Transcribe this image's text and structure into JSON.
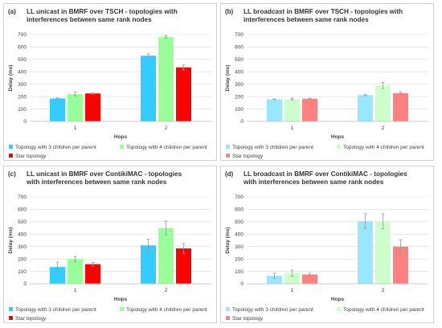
{
  "chart_data": [
    {
      "id": "a",
      "type": "bar",
      "letter": "(a)",
      "title_lines": [
        "LL unicast in BMRF over TSCH - topologies with",
        "interferences between same rank nodes"
      ],
      "xlabel": "Hops",
      "ylabel": "Delay (ms)",
      "ylim": [
        0,
        700
      ],
      "yticks": [
        0,
        100,
        200,
        300,
        400,
        500,
        600,
        700
      ],
      "categories": [
        "1",
        "2"
      ],
      "grid": true,
      "legend_position": "bottom",
      "series": [
        {
          "name": "Topology with 3 children per parent",
          "color": "#33ccff",
          "values": [
            185,
            530
          ],
          "errors": [
            5,
            15
          ]
        },
        {
          "name": "Topology with 4 children per parent",
          "color": "#99ff99",
          "values": [
            220,
            680
          ],
          "errors": [
            15,
            10
          ]
        },
        {
          "name": "Star topology",
          "color": "#ff0000",
          "values": [
            225,
            435
          ],
          "errors": [
            5,
            20
          ]
        }
      ]
    },
    {
      "id": "b",
      "type": "bar",
      "letter": "(b)",
      "title_lines": [
        "LL broadcast in BMRF over TSCH - topologies with",
        "interferences between same rank nodes"
      ],
      "xlabel": "Hops",
      "ylabel": "Delay (ms)",
      "ylim": [
        0,
        700
      ],
      "yticks": [
        0,
        100,
        200,
        300,
        400,
        500,
        600,
        700
      ],
      "categories": [
        "1",
        "2"
      ],
      "grid": true,
      "legend_position": "bottom",
      "series": [
        {
          "name": "Topology with 3 children per parent",
          "color": "#99e6ff",
          "values": [
            178,
            212
          ],
          "errors": [
            4,
            5
          ]
        },
        {
          "name": "Topology with 4 children per parent",
          "color": "#ccffcc",
          "values": [
            180,
            290
          ],
          "errors": [
            8,
            25
          ]
        },
        {
          "name": "Star topology",
          "color": "#ff8080",
          "values": [
            183,
            228
          ],
          "errors": [
            4,
            8
          ]
        }
      ]
    },
    {
      "id": "c",
      "type": "bar",
      "letter": "(c)",
      "title_lines": [
        "LL unicast in BMRF over ContikiMAC - topologies",
        "with interferences between same rank nodes"
      ],
      "xlabel": "Hops",
      "ylabel": "Delay (ms)",
      "ylim": [
        0,
        700
      ],
      "yticks": [
        0,
        100,
        200,
        300,
        400,
        500,
        600,
        700
      ],
      "categories": [
        "1",
        "2"
      ],
      "grid": true,
      "legend_position": "bottom",
      "series": [
        {
          "name": "Topology with 3 children per parent",
          "color": "#33ccff",
          "values": [
            135,
            310
          ],
          "errors": [
            40,
            50
          ]
        },
        {
          "name": "Topology with 4 children per parent",
          "color": "#99ff99",
          "values": [
            200,
            450
          ],
          "errors": [
            20,
            55
          ]
        },
        {
          "name": "Star topology",
          "color": "#ff0000",
          "values": [
            158,
            285
          ],
          "errors": [
            15,
            40
          ]
        }
      ]
    },
    {
      "id": "d",
      "type": "bar",
      "letter": "(d)",
      "title_lines": [
        "LL broadcast in BMRF over ContikiMAC - topologies",
        "with interferences between same rank nodes"
      ],
      "xlabel": "Hops",
      "ylabel": "Delay (ms)",
      "ylim": [
        0,
        700
      ],
      "yticks": [
        0,
        100,
        200,
        300,
        400,
        500,
        600,
        700
      ],
      "categories": [
        "1",
        "2"
      ],
      "grid": true,
      "legend_position": "bottom",
      "series": [
        {
          "name": "Topology with 3 children per parent",
          "color": "#99e6ff",
          "values": [
            65,
            505
          ],
          "errors": [
            20,
            60
          ]
        },
        {
          "name": "Topology with 4 children per parent",
          "color": "#ccffcc",
          "values": [
            85,
            505
          ],
          "errors": [
            25,
            60
          ]
        },
        {
          "name": "Star topology",
          "color": "#ff8080",
          "values": [
            75,
            300
          ],
          "errors": [
            10,
            55
          ]
        }
      ]
    }
  ]
}
